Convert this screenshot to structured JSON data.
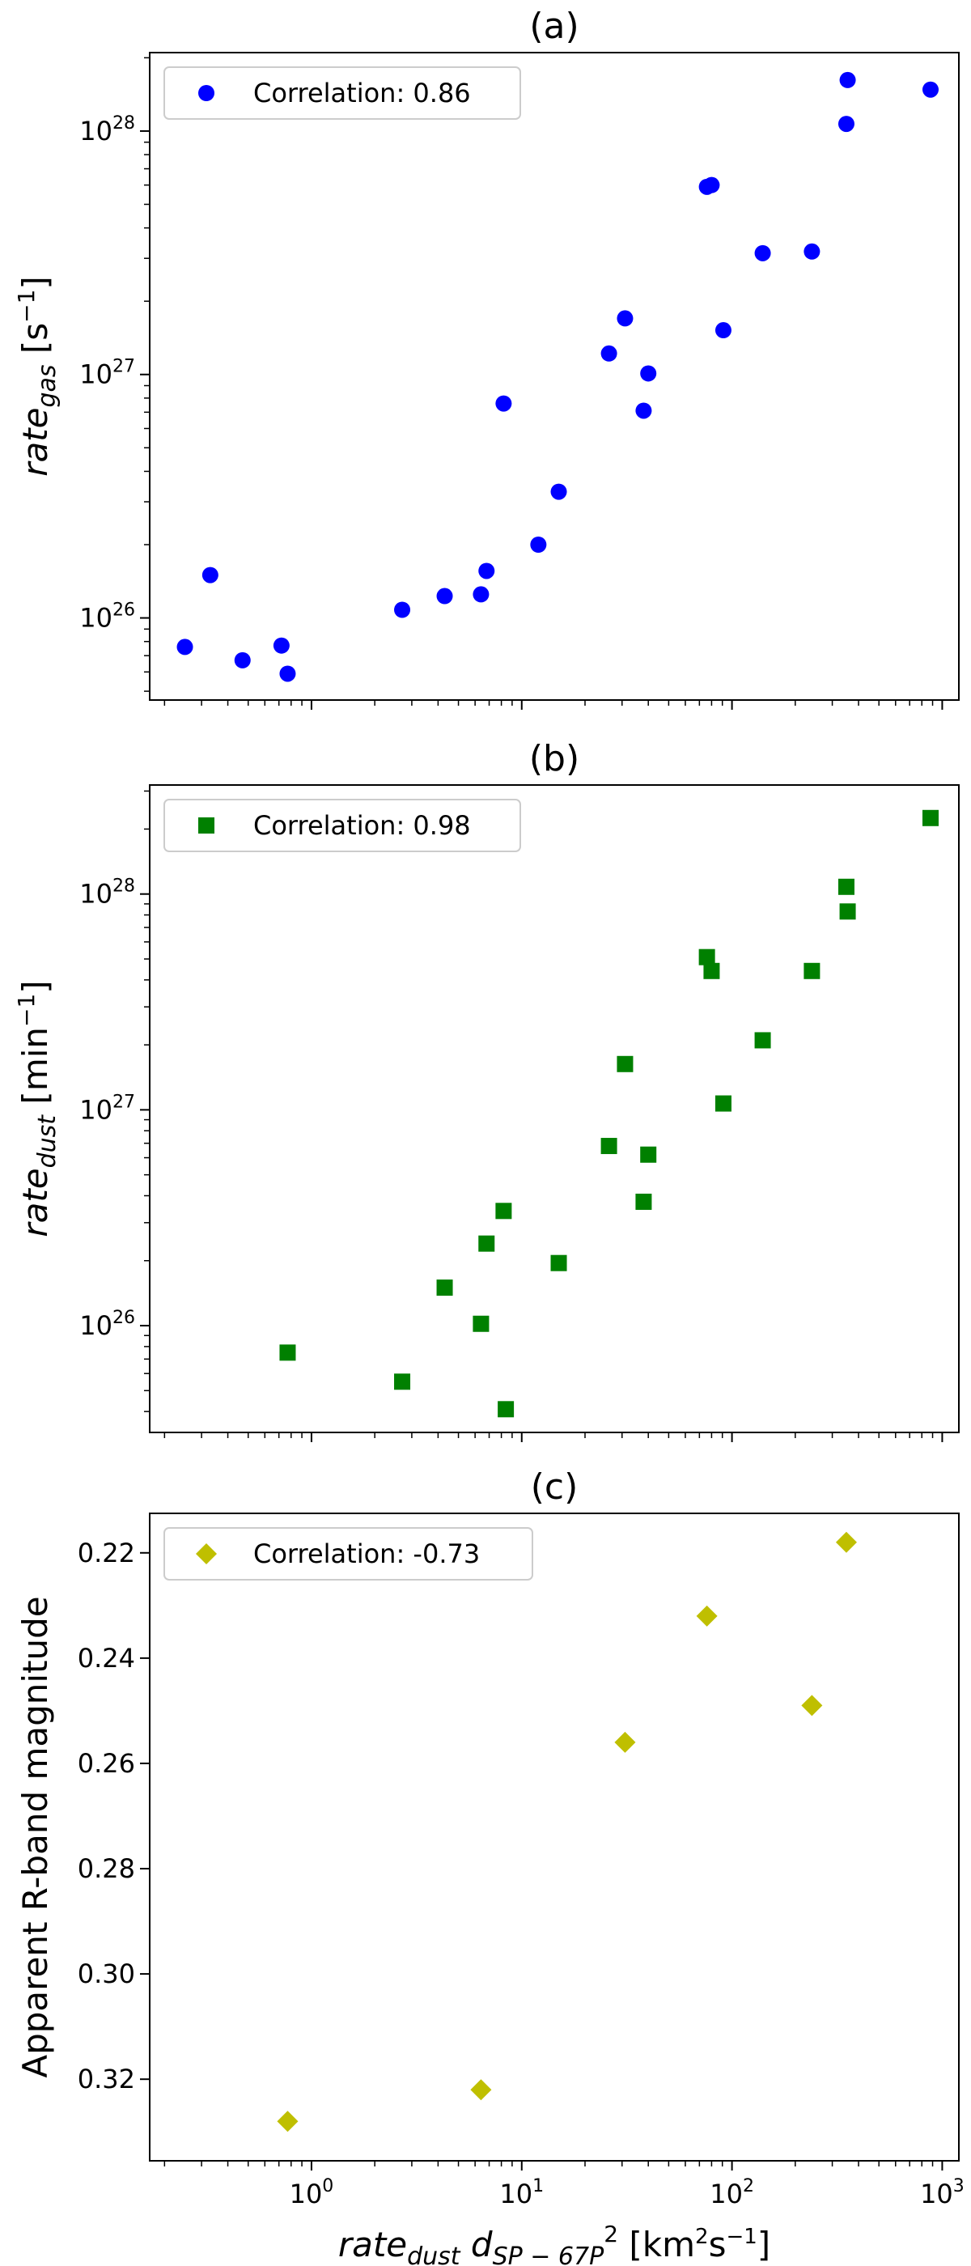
{
  "chart_data": [
    {
      "type": "scatter",
      "title": "(a)",
      "ylabel": {
        "main": "rate",
        "sub": "gas",
        "unit": " [s",
        "sup": "−1",
        "close": "]"
      },
      "xscale": "log",
      "yscale": "log",
      "xlim": [
        0.17,
        1200
      ],
      "ylim": [
        4.6e+25,
        2.1e+28
      ],
      "xticks": [
        {
          "v": 1,
          "base": "10",
          "exp": "0"
        },
        {
          "v": 10,
          "base": "10",
          "exp": "1"
        },
        {
          "v": 100,
          "base": "10",
          "exp": "2"
        },
        {
          "v": 1000,
          "base": "10",
          "exp": "3"
        }
      ],
      "yticks": [
        {
          "v": 1e+26,
          "base": "10",
          "exp": "26"
        },
        {
          "v": 1e+27,
          "base": "10",
          "exp": "27"
        },
        {
          "v": 1e+28,
          "base": "10",
          "exp": "28"
        }
      ],
      "show_xtick_labels": false,
      "marker": "circle",
      "color": "#0000ff",
      "legend": {
        "text": "Correlation: 0.86",
        "placement": "top-left"
      },
      "points": [
        {
          "x": 0.25,
          "y": 7.6e+25
        },
        {
          "x": 0.33,
          "y": 1.5e+26
        },
        {
          "x": 0.47,
          "y": 6.7e+25
        },
        {
          "x": 0.72,
          "y": 7.7e+25
        },
        {
          "x": 0.77,
          "y": 5.9e+25
        },
        {
          "x": 2.7,
          "y": 1.08e+26
        },
        {
          "x": 4.3,
          "y": 1.23e+26
        },
        {
          "x": 6.4,
          "y": 1.25e+26
        },
        {
          "x": 6.8,
          "y": 1.56e+26
        },
        {
          "x": 8.2,
          "y": 7.6e+26
        },
        {
          "x": 12,
          "y": 2e+26
        },
        {
          "x": 15,
          "y": 3.3e+26
        },
        {
          "x": 26,
          "y": 1.22e+27
        },
        {
          "x": 31,
          "y": 1.7e+27
        },
        {
          "x": 38,
          "y": 7.1e+26
        },
        {
          "x": 40,
          "y": 1.01e+27
        },
        {
          "x": 76,
          "y": 5.9e+27
        },
        {
          "x": 80,
          "y": 6e+27
        },
        {
          "x": 91,
          "y": 1.52e+27
        },
        {
          "x": 140,
          "y": 3.15e+27
        },
        {
          "x": 240,
          "y": 3.2e+27
        },
        {
          "x": 350,
          "y": 1.07e+28
        },
        {
          "x": 355,
          "y": 1.62e+28
        },
        {
          "x": 880,
          "y": 1.48e+28
        }
      ]
    },
    {
      "type": "scatter",
      "title": "(b)",
      "ylabel": {
        "main": "rate",
        "sub": "dust",
        "unit": " [min",
        "sup": "−1",
        "close": "]"
      },
      "xscale": "log",
      "yscale": "log",
      "xlim": [
        0.17,
        1200
      ],
      "ylim": [
        3.2e+25,
        3.2e+28
      ],
      "xticks": [
        {
          "v": 1,
          "base": "10",
          "exp": "0"
        },
        {
          "v": 10,
          "base": "10",
          "exp": "1"
        },
        {
          "v": 100,
          "base": "10",
          "exp": "2"
        },
        {
          "v": 1000,
          "base": "10",
          "exp": "3"
        }
      ],
      "yticks": [
        {
          "v": 1e+26,
          "base": "10",
          "exp": "26"
        },
        {
          "v": 1e+27,
          "base": "10",
          "exp": "27"
        },
        {
          "v": 1e+28,
          "base": "10",
          "exp": "28"
        }
      ],
      "show_xtick_labels": false,
      "marker": "square",
      "color": "#008000",
      "legend": {
        "text": "Correlation: 0.98",
        "placement": "top-left"
      },
      "points": [
        {
          "x": 0.77,
          "y": 7.5e+25
        },
        {
          "x": 2.7,
          "y": 5.5e+25
        },
        {
          "x": 4.3,
          "y": 1.5e+26
        },
        {
          "x": 6.4,
          "y": 1.02e+26
        },
        {
          "x": 6.8,
          "y": 2.4e+26
        },
        {
          "x": 8.2,
          "y": 3.4e+26
        },
        {
          "x": 8.4,
          "y": 4.1e+25
        },
        {
          "x": 15,
          "y": 1.95e+26
        },
        {
          "x": 26,
          "y": 6.8e+26
        },
        {
          "x": 31,
          "y": 1.63e+27
        },
        {
          "x": 38,
          "y": 3.75e+26
        },
        {
          "x": 40,
          "y": 6.2e+26
        },
        {
          "x": 76,
          "y": 5.1e+27
        },
        {
          "x": 80,
          "y": 4.4e+27
        },
        {
          "x": 91,
          "y": 1.07e+27
        },
        {
          "x": 140,
          "y": 2.1e+27
        },
        {
          "x": 240,
          "y": 4.4e+27
        },
        {
          "x": 350,
          "y": 1.08e+28
        },
        {
          "x": 355,
          "y": 8.3e+27
        },
        {
          "x": 880,
          "y": 2.25e+28
        }
      ]
    },
    {
      "type": "scatter",
      "title": "(c)",
      "ylabel": {
        "main": "Apparent R-band magnitude"
      },
      "xlabel": {
        "main": "rate",
        "sub1": "dust",
        "mid": "d",
        "sub2": "SP − 67P",
        "sup": "2",
        "unit": " [km",
        "usup": "2",
        "unit2": "s",
        "usup2": "−1",
        "close": "]"
      },
      "xscale": "log",
      "yscale": "linear",
      "y_inverted": true,
      "xlim": [
        0.17,
        1200
      ],
      "ylim": [
        0.2125,
        0.3355
      ],
      "xticks": [
        {
          "v": 1,
          "base": "10",
          "exp": "0"
        },
        {
          "v": 10,
          "base": "10",
          "exp": "1"
        },
        {
          "v": 100,
          "base": "10",
          "exp": "2"
        },
        {
          "v": 1000,
          "base": "10",
          "exp": "3"
        }
      ],
      "yticks": [
        {
          "v": 0.22,
          "label": "0.22"
        },
        {
          "v": 0.24,
          "label": "0.24"
        },
        {
          "v": 0.26,
          "label": "0.26"
        },
        {
          "v": 0.28,
          "label": "0.28"
        },
        {
          "v": 0.3,
          "label": "0.30"
        },
        {
          "v": 0.32,
          "label": "0.32"
        }
      ],
      "show_xtick_labels": true,
      "marker": "diamond",
      "color": "#bfbf00",
      "legend": {
        "text": "Correlation: -0.73",
        "placement": "top-left"
      },
      "points": [
        {
          "x": 0.77,
          "y": 0.328
        },
        {
          "x": 6.4,
          "y": 0.322
        },
        {
          "x": 31,
          "y": 0.256
        },
        {
          "x": 76,
          "y": 0.232
        },
        {
          "x": 240,
          "y": 0.249
        },
        {
          "x": 350,
          "y": 0.218
        }
      ]
    }
  ]
}
